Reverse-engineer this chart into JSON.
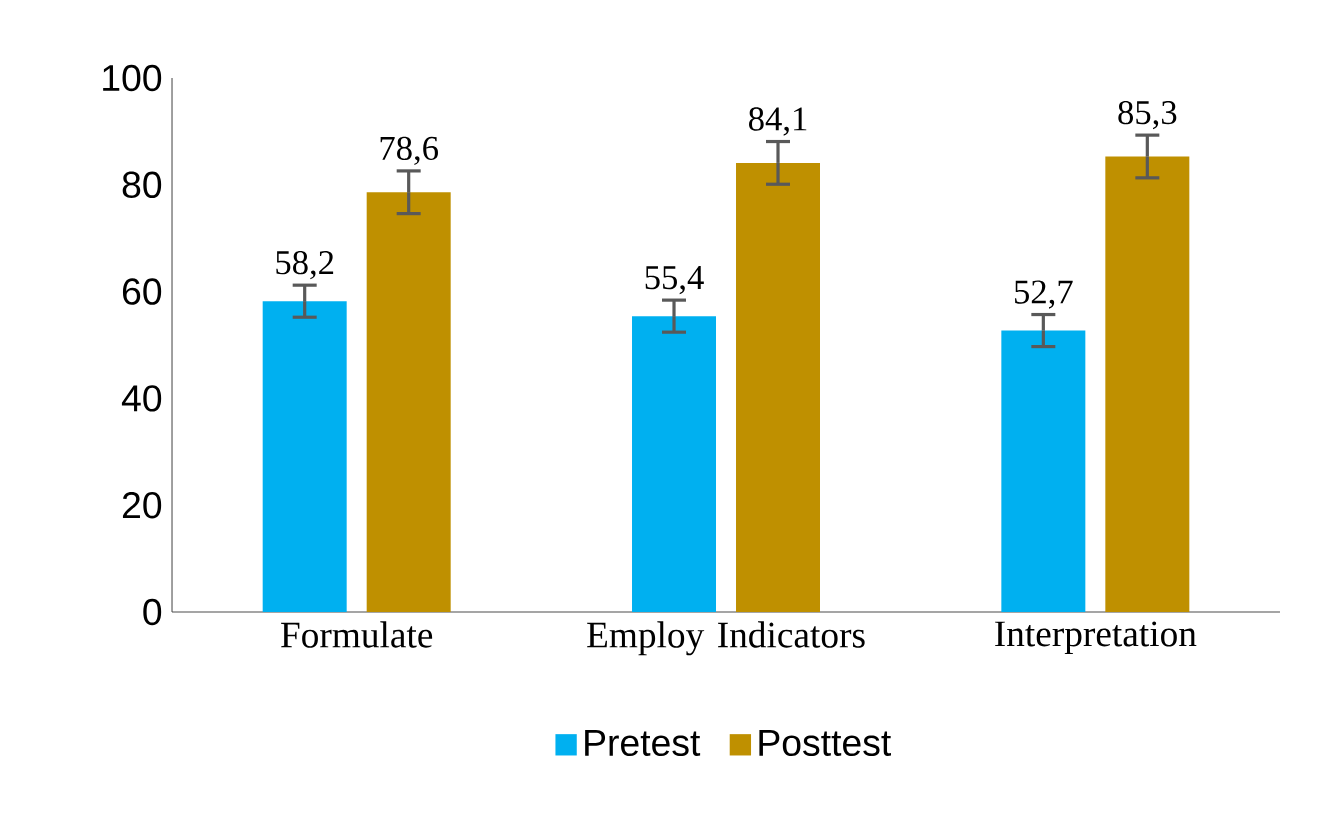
{
  "chart_data": {
    "type": "bar",
    "categories": [
      "Formulate",
      "Employ Indicators",
      "Interpretation"
    ],
    "series": [
      {
        "name": "Pretest",
        "color": "#00b0f0",
        "values": [
          58.2,
          55.4,
          52.7
        ],
        "errors": [
          3,
          3,
          3
        ],
        "value_labels": [
          "58,2",
          "55,4",
          "52,7"
        ]
      },
      {
        "name": "Posttest",
        "color": "#bf9000",
        "values": [
          78.6,
          84.1,
          85.3
        ],
        "errors": [
          4,
          4,
          4
        ],
        "value_labels": [
          "78,6",
          "84,1",
          "85,3"
        ]
      }
    ],
    "ylim": [
      0,
      100
    ],
    "yticks": [
      0,
      20,
      40,
      60,
      80,
      100
    ],
    "legend": "bottom",
    "grid": false
  }
}
